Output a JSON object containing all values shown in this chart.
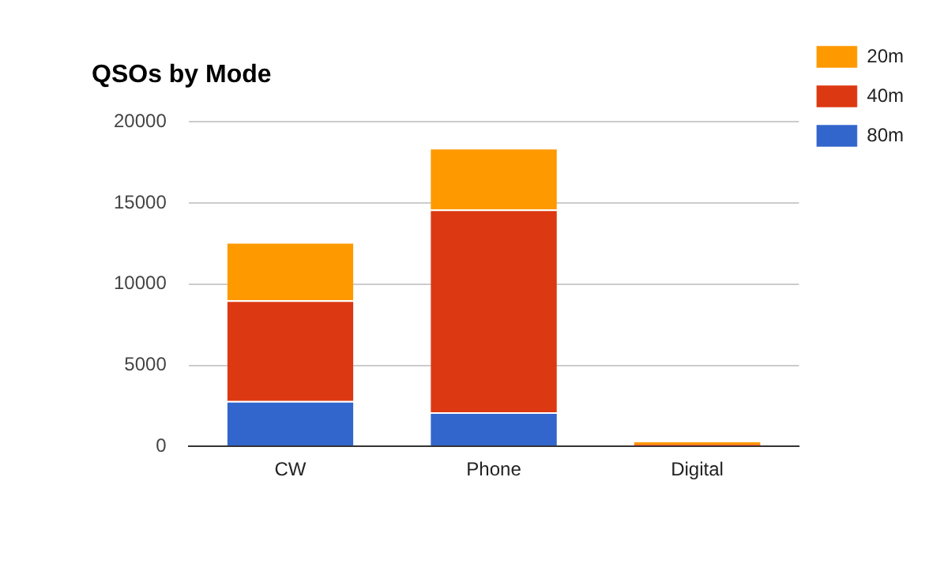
{
  "chart_data": {
    "type": "bar",
    "title": "QSOs by Mode",
    "categories": [
      "CW",
      "Phone",
      "Digital"
    ],
    "stacked": true,
    "series": [
      {
        "name": "80m",
        "color": "#3366cc",
        "values": [
          2800,
          2100,
          0
        ]
      },
      {
        "name": "40m",
        "color": "#dc3912",
        "values": [
          6200,
          12500,
          100
        ]
      },
      {
        "name": "20m",
        "color": "#ff9900",
        "values": [
          3600,
          3800,
          150
        ]
      }
    ],
    "ylim": [
      0,
      20000
    ],
    "yticks": [
      0,
      5000,
      10000,
      15000,
      20000
    ],
    "grid": "y",
    "legend": "top right"
  }
}
